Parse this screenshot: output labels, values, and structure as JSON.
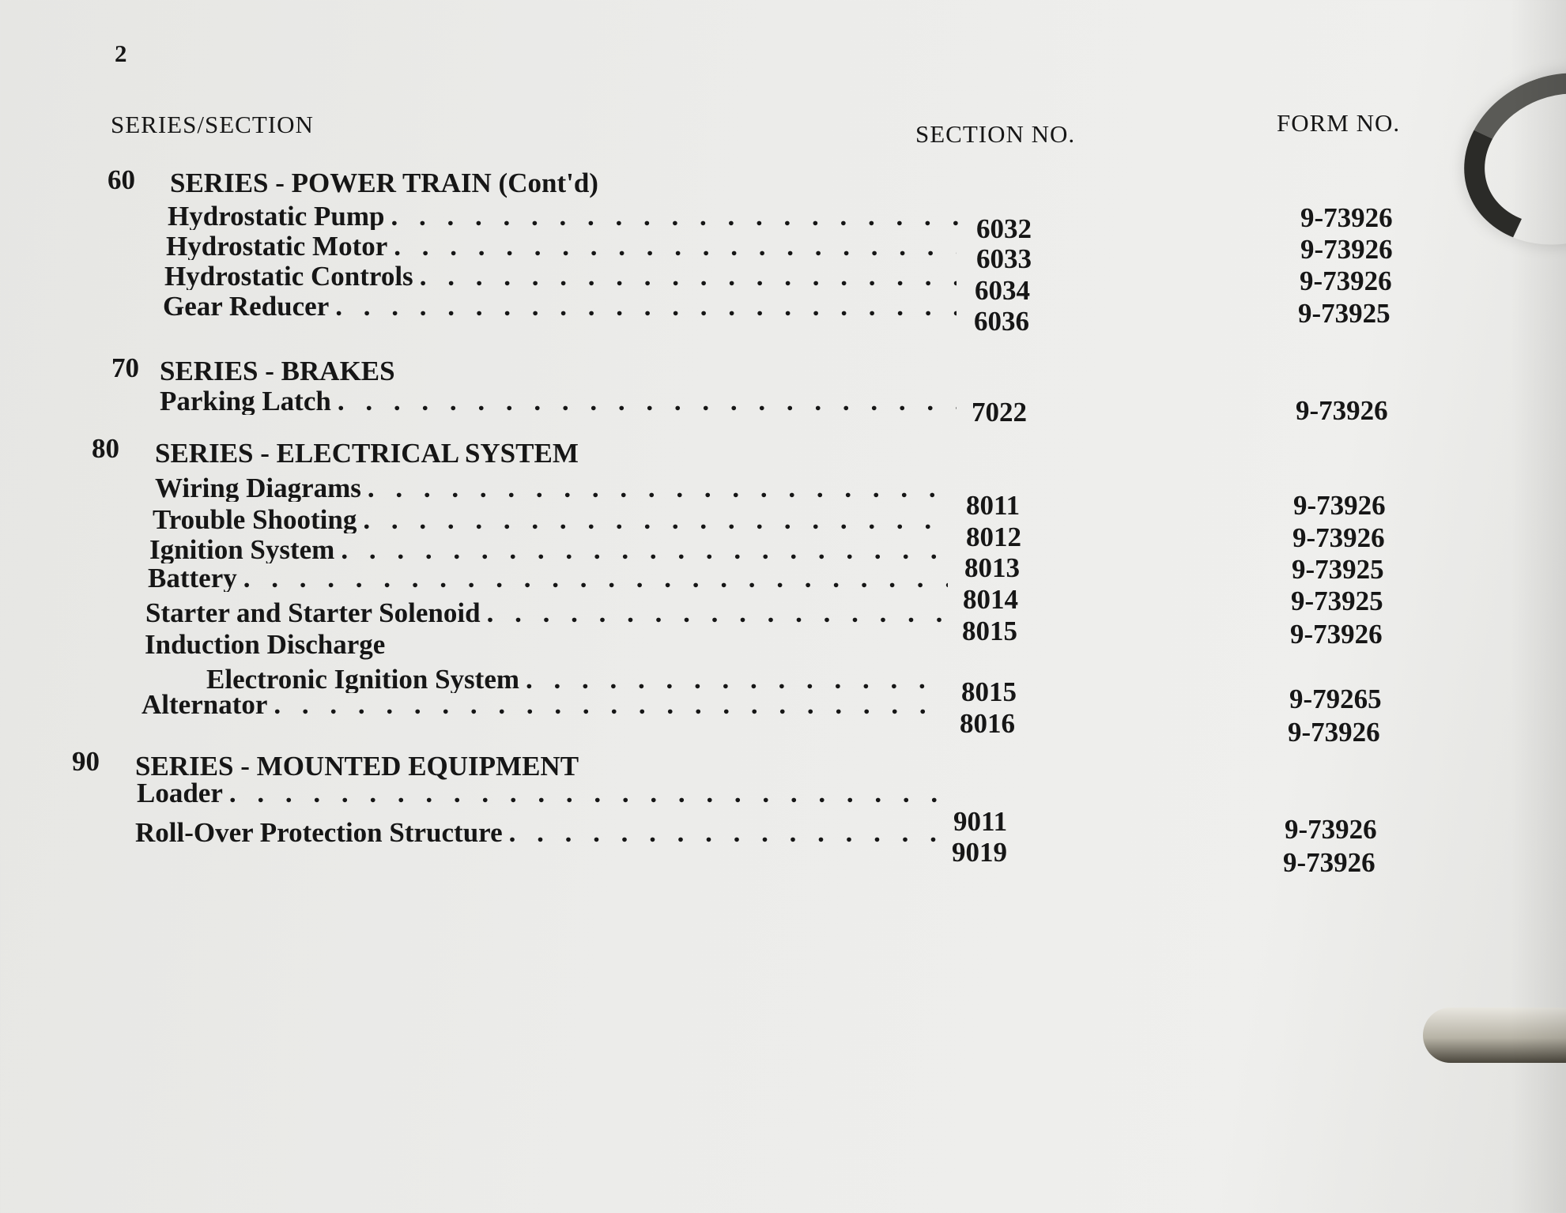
{
  "page_number": "2",
  "headers": {
    "series_section": "SERIES/SECTION",
    "section_no": "SECTION NO.",
    "form_no": "FORM NO."
  },
  "dots": ". . . . . . . . . . . . . . . . . . . . . . . . . . . . . . . . . . . . . . . . . . . . . . . . . . . .",
  "series": [
    {
      "number": "60",
      "title": "SERIES - POWER TRAIN (Cont'd)",
      "items": [
        {
          "label": "Hydrostatic Pump",
          "section": "6032",
          "form": "9-73926"
        },
        {
          "label": "Hydrostatic Motor",
          "section": "6033",
          "form": "9-73926"
        },
        {
          "label": "Hydrostatic Controls",
          "section": "6034",
          "form": "9-73926"
        },
        {
          "label": "Gear Reducer",
          "section": "6036",
          "form": "9-73925"
        }
      ]
    },
    {
      "number": "70",
      "title": "SERIES - BRAKES",
      "items": [
        {
          "label": "Parking Latch",
          "section": "7022",
          "form": "9-73926"
        }
      ]
    },
    {
      "number": "80",
      "title": "SERIES - ELECTRICAL SYSTEM",
      "items": [
        {
          "label": "Wiring Diagrams",
          "section": "8011",
          "form": "9-73926"
        },
        {
          "label": "Trouble Shooting",
          "section": "8012",
          "form": "9-73926"
        },
        {
          "label": "Ignition System",
          "section": "8013",
          "form": "9-73925"
        },
        {
          "label": "Battery",
          "section": "8014",
          "form": "9-73925"
        },
        {
          "label": "Starter and Starter Solenoid",
          "section": "8015",
          "form": "9-73926"
        },
        {
          "label": "Induction Discharge"
        },
        {
          "label": "Electronic Ignition System",
          "section": "8015",
          "form": "9-79265"
        },
        {
          "label": "Alternator",
          "section": "8016",
          "form": "9-73926"
        }
      ]
    },
    {
      "number": "90",
      "title": "SERIES - MOUNTED EQUIPMENT",
      "items": [
        {
          "label": "Loader",
          "section": "9011",
          "form": "9-73926"
        },
        {
          "label": "Roll-Over Protection Structure",
          "section": "9019",
          "form": "9-73926"
        }
      ]
    }
  ]
}
